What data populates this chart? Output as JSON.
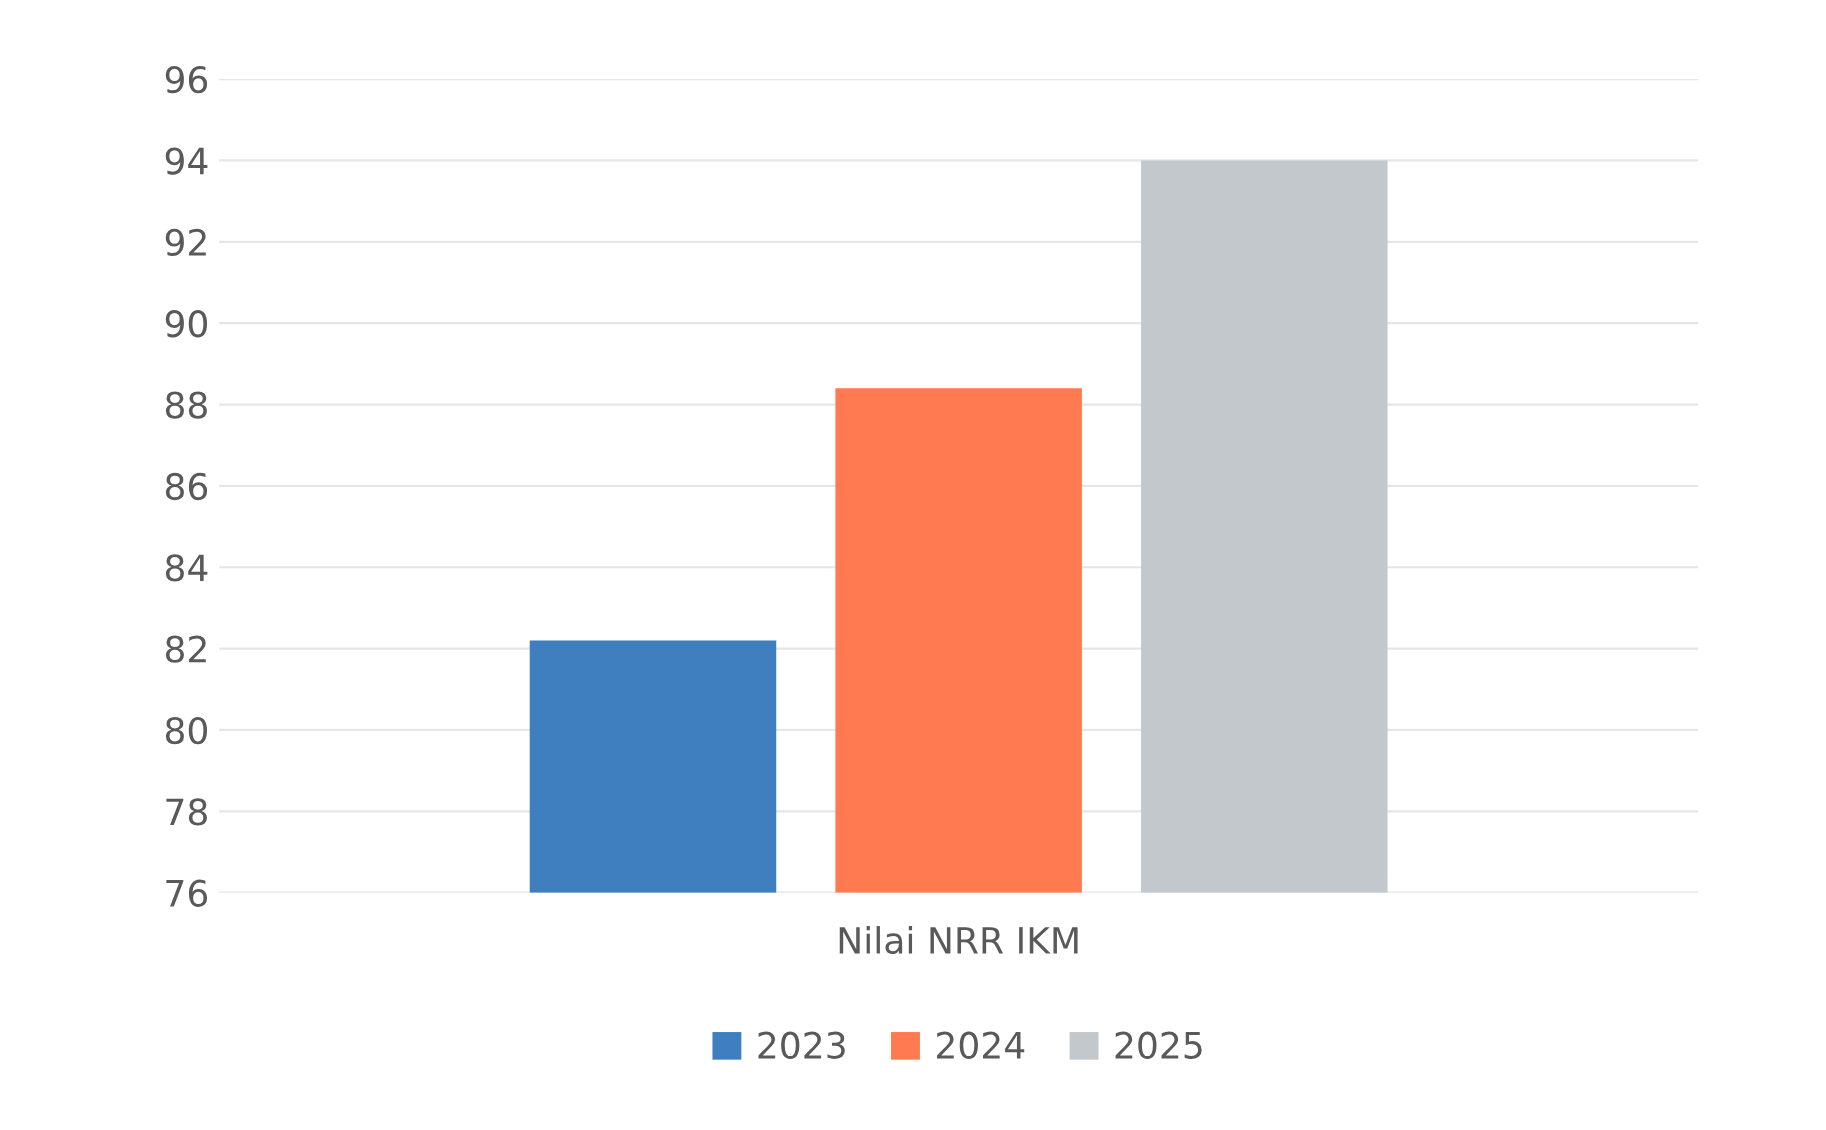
{
  "chart_data": {
    "type": "bar",
    "categories": [
      "Nilai NRR IKM"
    ],
    "series": [
      {
        "name": "2023",
        "color": "#3f7fc0",
        "values": [
          82.2
        ]
      },
      {
        "name": "2024",
        "color": "#ff7a50",
        "values": [
          88.4
        ]
      },
      {
        "name": "2025",
        "color": "#c2c8cc",
        "values": [
          94.0
        ]
      }
    ],
    "ylim": [
      76,
      96
    ],
    "yticks": [
      76,
      78,
      80,
      82,
      84,
      86,
      88,
      90,
      92,
      94,
      96
    ],
    "grid": "y",
    "legend": "bottom"
  }
}
